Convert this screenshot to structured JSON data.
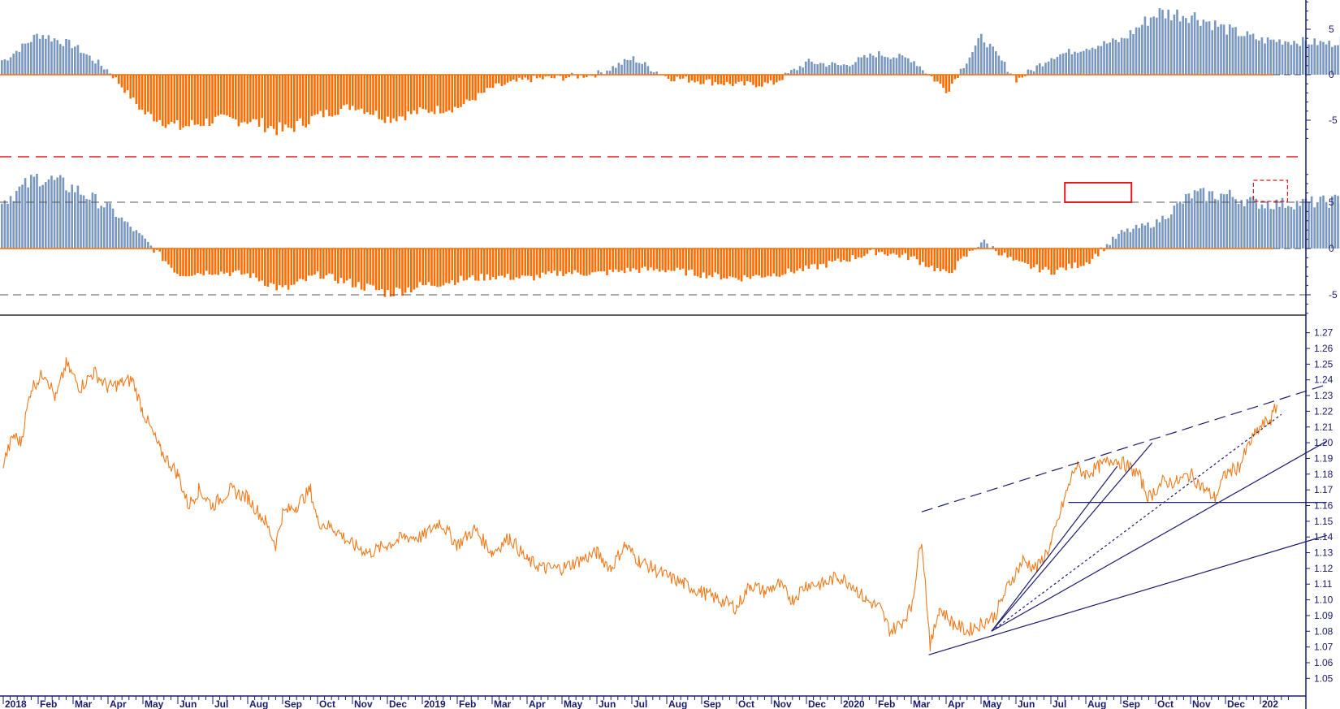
{
  "colors": {
    "positive": "#7a98bf",
    "negative": "#ff6d00",
    "price": "#f07a1c",
    "trendline": "#1c1c6e",
    "highlight": "#e8191d",
    "separator_dash": "#e8191d",
    "axis": "#1a1a6e",
    "ref_dash": "#555555"
  },
  "chart_data": [
    {
      "type": "histogram",
      "panel": "top",
      "ylim": [
        -8,
        9
      ],
      "yticks": [
        "5",
        "0",
        "-5"
      ],
      "profile_months": [
        1.6,
        4.5,
        3.2,
        0.4,
        -4.2,
        -5.8,
        -5.0,
        -5.0,
        -6.2,
        -4.5,
        -3.4,
        -4.8,
        -4.0,
        -3.6,
        -1.4,
        -0.5,
        -0.3,
        0.1,
        1.8,
        -0.3,
        -0.7,
        -1.1,
        -1.0,
        1.4,
        1.0,
        2.3,
        1.7,
        -1.8,
        4.2,
        -0.6,
        2.0,
        3.0,
        3.8,
        6.8,
        6.6,
        5.0,
        3.8,
        3.7,
        3.4,
        5.3
      ]
    },
    {
      "type": "histogram",
      "panel": "middle",
      "ylim": [
        -7,
        9
      ],
      "yticks": [
        "5",
        "0",
        "-5"
      ],
      "reference_lines": [
        5,
        -5
      ],
      "profile_months": [
        5.2,
        7.8,
        6.5,
        4.4,
        1.0,
        -2.8,
        -2.5,
        -2.8,
        -4.5,
        -2.8,
        -3.8,
        -4.8,
        -4.0,
        -3.4,
        -3.0,
        -3.2,
        -2.6,
        -2.7,
        -2.3,
        -2.3,
        -2.8,
        -3.2,
        -2.8,
        -2.2,
        -1.3,
        -0.3,
        -1.0,
        -2.8,
        0.8,
        -1.6,
        -2.5,
        -1.5,
        1.7,
        2.8,
        5.8,
        5.8,
        4.8,
        4.9,
        5.1,
        6.2
      ]
    },
    {
      "type": "line",
      "panel": "bottom",
      "ylim": [
        1.045,
        1.275
      ],
      "yticks": [
        "1.27",
        "1.26",
        "1.25",
        "1.24",
        "1.23",
        "1.22",
        "1.21",
        "1.20",
        "1.19",
        "1.18",
        "1.17",
        "1.16",
        "1.15",
        "1.14",
        "1.13",
        "1.12",
        "1.11",
        "1.10",
        "1.09",
        "1.08",
        "1.07",
        "1.06",
        "1.05"
      ],
      "x_labels": [
        "2018",
        "Feb",
        "Mar",
        "Apr",
        "May",
        "Jun",
        "Jul",
        "Aug",
        "Sep",
        "Oct",
        "Nov",
        "Dec",
        "2019",
        "Feb",
        "Mar",
        "Apr",
        "May",
        "Jun",
        "Jul",
        "Aug",
        "Sep",
        "Oct",
        "Nov",
        "Dec",
        "2020",
        "Feb",
        "Mar",
        "Apr",
        "May",
        "Jun",
        "Jul",
        "Aug",
        "Sep",
        "Oct",
        "Nov",
        "Dec",
        "202"
      ],
      "anchors": [
        [
          0.0,
          1.187
        ],
        [
          0.3,
          1.205
        ],
        [
          0.5,
          1.2
        ],
        [
          0.8,
          1.235
        ],
        [
          1.2,
          1.245
        ],
        [
          1.5,
          1.228
        ],
        [
          1.8,
          1.25
        ],
        [
          2.2,
          1.235
        ],
        [
          2.6,
          1.245
        ],
        [
          3.0,
          1.235
        ],
        [
          3.4,
          1.238
        ],
        [
          3.7,
          1.24
        ],
        [
          4.0,
          1.22
        ],
        [
          4.5,
          1.195
        ],
        [
          5.0,
          1.18
        ],
        [
          5.3,
          1.16
        ],
        [
          5.6,
          1.17
        ],
        [
          6.0,
          1.16
        ],
        [
          6.5,
          1.17
        ],
        [
          7.0,
          1.165
        ],
        [
          7.5,
          1.15
        ],
        [
          7.8,
          1.135
        ],
        [
          8.0,
          1.155
        ],
        [
          8.4,
          1.16
        ],
        [
          8.8,
          1.17
        ],
        [
          9.0,
          1.15
        ],
        [
          9.5,
          1.145
        ],
        [
          10.0,
          1.135
        ],
        [
          10.5,
          1.13
        ],
        [
          11.0,
          1.135
        ],
        [
          11.5,
          1.14
        ],
        [
          12.0,
          1.14
        ],
        [
          12.5,
          1.15
        ],
        [
          13.0,
          1.135
        ],
        [
          13.5,
          1.145
        ],
        [
          14.0,
          1.13
        ],
        [
          14.5,
          1.14
        ],
        [
          15.0,
          1.125
        ],
        [
          15.5,
          1.12
        ],
        [
          16.0,
          1.12
        ],
        [
          16.5,
          1.125
        ],
        [
          17.0,
          1.13
        ],
        [
          17.4,
          1.12
        ],
        [
          17.8,
          1.135
        ],
        [
          18.2,
          1.125
        ],
        [
          18.6,
          1.12
        ],
        [
          19.0,
          1.115
        ],
        [
          19.5,
          1.11
        ],
        [
          20.0,
          1.105
        ],
        [
          20.5,
          1.1
        ],
        [
          21.0,
          1.095
        ],
        [
          21.4,
          1.11
        ],
        [
          21.8,
          1.105
        ],
        [
          22.2,
          1.11
        ],
        [
          22.6,
          1.1
        ],
        [
          23.0,
          1.11
        ],
        [
          23.5,
          1.11
        ],
        [
          23.9,
          1.115
        ],
        [
          24.3,
          1.11
        ],
        [
          24.7,
          1.1
        ],
        [
          25.1,
          1.095
        ],
        [
          25.4,
          1.08
        ],
        [
          25.7,
          1.085
        ],
        [
          26.0,
          1.095
        ],
        [
          26.3,
          1.14
        ],
        [
          26.55,
          1.07
        ],
        [
          26.8,
          1.095
        ],
        [
          27.2,
          1.085
        ],
        [
          27.6,
          1.08
        ],
        [
          28.0,
          1.085
        ],
        [
          28.4,
          1.09
        ],
        [
          28.8,
          1.11
        ],
        [
          29.2,
          1.125
        ],
        [
          29.6,
          1.12
        ],
        [
          30.0,
          1.135
        ],
        [
          30.4,
          1.165
        ],
        [
          30.7,
          1.185
        ],
        [
          31.0,
          1.18
        ],
        [
          31.4,
          1.185
        ],
        [
          31.8,
          1.19
        ],
        [
          32.2,
          1.185
        ],
        [
          32.5,
          1.18
        ],
        [
          32.8,
          1.165
        ],
        [
          33.2,
          1.175
        ],
        [
          33.6,
          1.175
        ],
        [
          34.0,
          1.18
        ],
        [
          34.4,
          1.17
        ],
        [
          34.7,
          1.165
        ],
        [
          35.0,
          1.18
        ],
        [
          35.4,
          1.185
        ],
        [
          35.7,
          1.2
        ],
        [
          36.0,
          1.21
        ],
        [
          36.3,
          1.215
        ],
        [
          36.5,
          1.225
        ]
      ],
      "trendlines": [
        {
          "style": "dashed",
          "from": [
            26.3,
            1.156
          ],
          "to": [
            37.9,
            1.237
          ]
        },
        {
          "style": "solid",
          "from": [
            26.5,
            1.065
          ],
          "to": [
            37.9,
            1.141
          ]
        },
        {
          "style": "solid",
          "from": [
            28.3,
            1.08
          ],
          "to": [
            37.9,
            1.201
          ]
        },
        {
          "style": "solid",
          "from": [
            28.3,
            1.08
          ],
          "to": [
            32.9,
            1.2
          ]
        },
        {
          "style": "solid",
          "from": [
            28.3,
            1.08
          ],
          "to": [
            31.9,
            1.185
          ]
        },
        {
          "style": "dotted",
          "from": [
            28.3,
            1.08
          ],
          "to": [
            36.6,
            1.218
          ]
        },
        {
          "style": "solid",
          "from": [
            30.5,
            1.162
          ],
          "to": [
            37.9,
            1.162
          ]
        }
      ]
    }
  ]
}
